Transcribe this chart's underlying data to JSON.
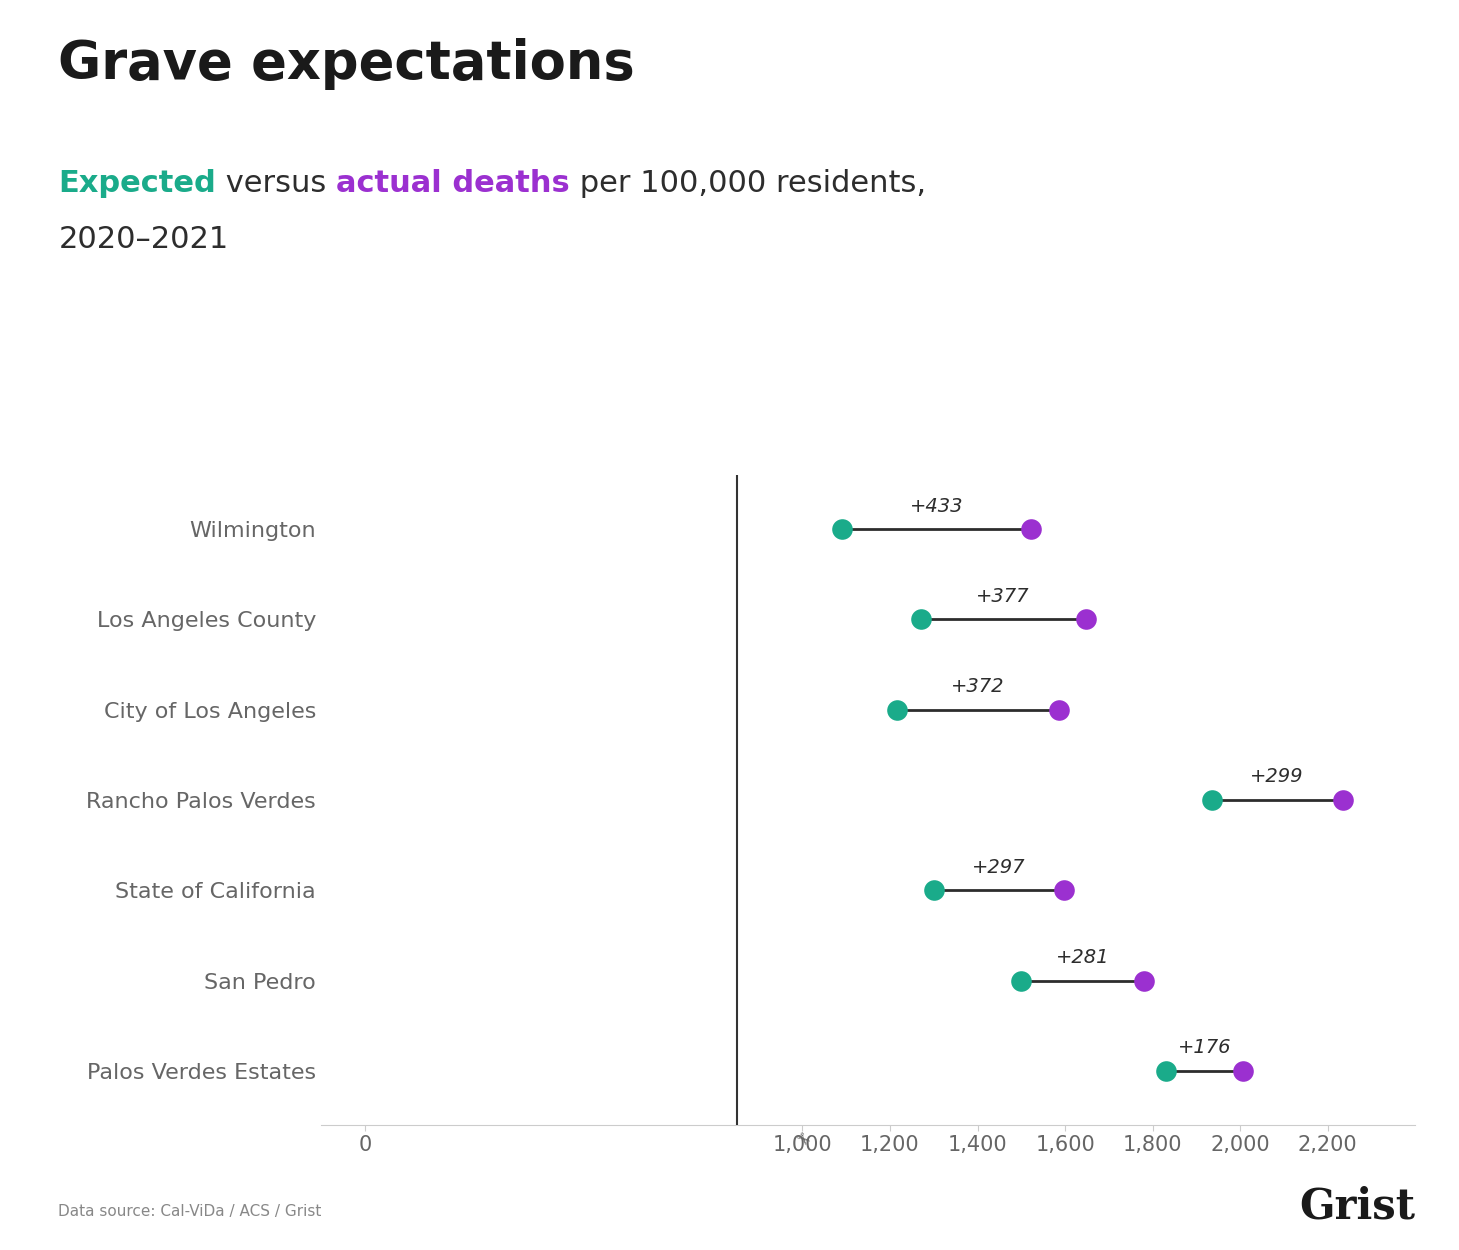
{
  "title": "Grave expectations",
  "categories": [
    "Wilmington",
    "Los Angeles County",
    "City of Los Angeles",
    "Rancho Palos Verdes",
    "State of California",
    "San Pedro",
    "Palos Verdes Estates"
  ],
  "expected": [
    1090,
    1270,
    1215,
    1935,
    1300,
    1500,
    1830
  ],
  "actual": [
    1523,
    1647,
    1587,
    2234,
    1597,
    1781,
    2006
  ],
  "differences": [
    "+433",
    "+377",
    "+372",
    "+299",
    "+297",
    "+281",
    "+176"
  ],
  "expected_color": "#1aab8a",
  "actual_color": "#9b30d0",
  "line_color": "#2d2d2d",
  "background_color": "#ffffff",
  "xlim": [
    -100,
    2400
  ],
  "xticks": [
    0,
    1000,
    1200,
    1400,
    1600,
    1800,
    2000,
    2200
  ],
  "xtick_labels": [
    "0",
    "1,000",
    "1,200",
    "1,400",
    "1,600",
    "1,800",
    "2,000",
    "2,200"
  ],
  "dot_size": 220,
  "source_text": "Data source: Cal-ViDa / ACS / Grist",
  "grist_text": "Grist",
  "subtitle_line1_parts": [
    {
      "text": "Expected",
      "color": "#1aab8a",
      "weight": "bold"
    },
    {
      "text": " versus ",
      "color": "#2d2d2d",
      "weight": "normal"
    },
    {
      "text": "actual deaths",
      "color": "#9b30d0",
      "weight": "bold"
    },
    {
      "text": " per 100,000 residents,",
      "color": "#2d2d2d",
      "weight": "normal"
    }
  ],
  "subtitle_line2": "2020–2021",
  "subtitle_line2_color": "#2d2d2d",
  "title_fontsize": 38,
  "subtitle_fontsize": 22,
  "ylabel_fontsize": 16,
  "xlabel_fontsize": 15
}
